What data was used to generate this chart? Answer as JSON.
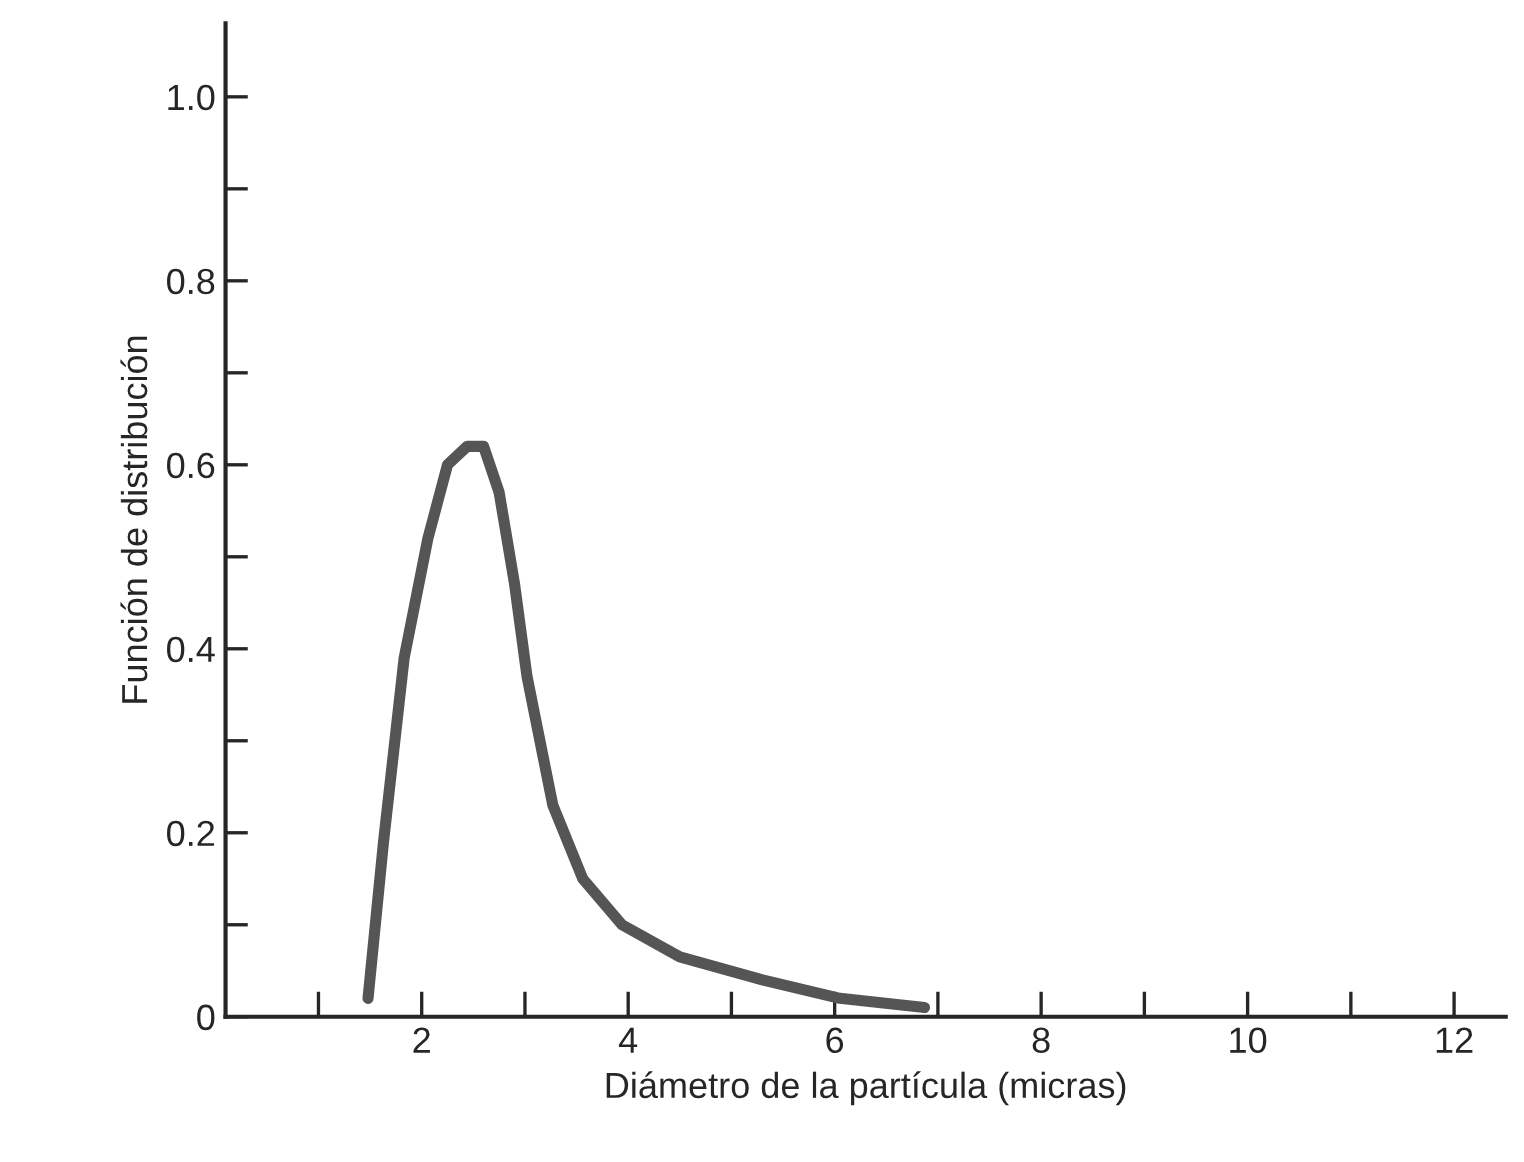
{
  "chart_data": {
    "type": "line",
    "xlabel": "Diámetro de la partícula (micras)",
    "ylabel": "Función de distribución",
    "xlim": [
      0.1,
      12.5
    ],
    "ylim": [
      0,
      1.08
    ],
    "xticks": [
      {
        "value": 1,
        "label": null
      },
      2,
      {
        "value": 3,
        "label": null
      },
      4,
      {
        "value": 5,
        "label": null
      },
      6,
      {
        "value": 7,
        "label": null
      },
      8,
      {
        "value": 9,
        "label": null
      },
      10,
      {
        "value": 11,
        "label": null
      },
      12
    ],
    "yticks": [
      0,
      {
        "value": 0.1,
        "label": null
      },
      0.2,
      {
        "value": 0.3,
        "label": null
      },
      0.4,
      {
        "value": 0.5,
        "label": null
      },
      0.6,
      {
        "value": 0.7,
        "label": null
      },
      0.8,
      {
        "value": 0.9,
        "label": null
      },
      {
        "value": 1.0,
        "label": "1.0"
      }
    ],
    "grid": false,
    "marker": "none",
    "line_style": "solid",
    "series": [
      {
        "color": "#555555",
        "x": [
          1.48,
          1.63,
          1.83,
          2.06,
          2.25,
          2.44,
          2.6,
          2.75,
          2.9,
          3.02,
          3.27,
          3.56,
          3.94,
          4.5,
          5.3,
          6.05,
          6.87
        ],
        "values": [
          0.02,
          0.19,
          0.39,
          0.52,
          0.6,
          0.62,
          0.62,
          0.57,
          0.47,
          0.37,
          0.23,
          0.15,
          0.1,
          0.065,
          0.04,
          0.02,
          0.01
        ]
      }
    ]
  }
}
